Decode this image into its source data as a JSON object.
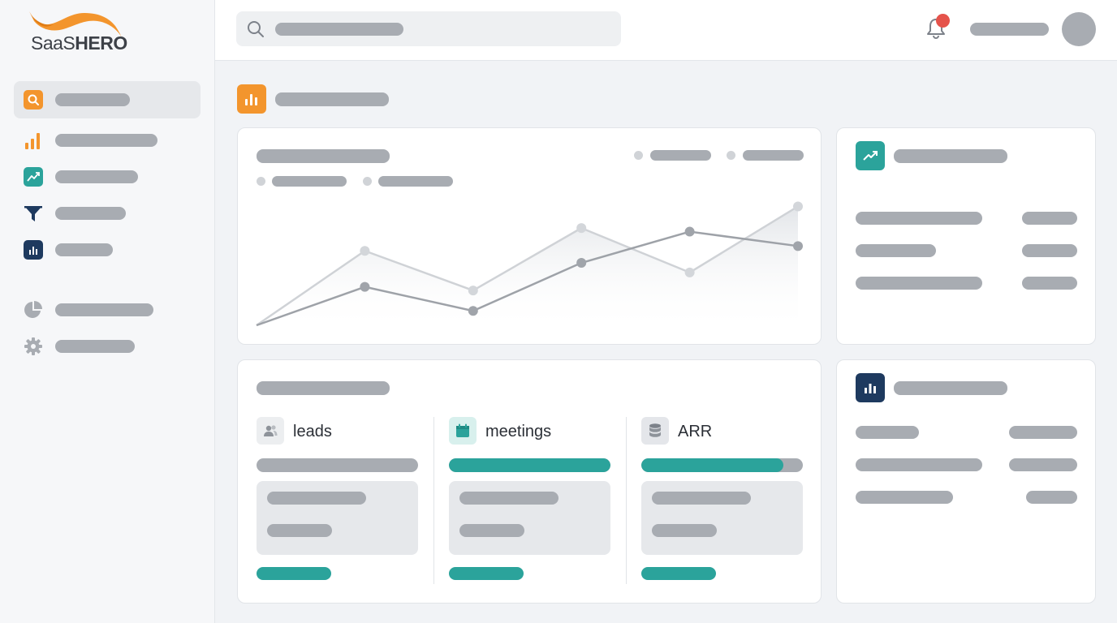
{
  "app": {
    "logo_text_light": "SaaS",
    "logo_text_bold": "HERO",
    "accent_orange": "#f3952d",
    "accent_teal": "#2ba39b",
    "accent_navy": "#1e3a5f",
    "notification_dot": "#e5534b"
  },
  "sidebar": {
    "items": [
      {
        "icon": "search-icon",
        "active": true
      },
      {
        "icon": "bar-chart-icon",
        "active": false
      },
      {
        "icon": "trend-up-icon",
        "active": false
      },
      {
        "icon": "funnel-icon",
        "active": false
      },
      {
        "icon": "column-chart-icon",
        "active": false
      },
      {
        "icon": "pie-chart-icon",
        "active": false
      },
      {
        "icon": "gear-icon",
        "active": false
      }
    ]
  },
  "header": {
    "search_icon": "search-icon",
    "bell_icon": "bell-icon",
    "has_notification": true
  },
  "page": {
    "icon": "bar-chart-icon"
  },
  "chart_data": {
    "type": "line",
    "x": [
      1,
      2,
      3,
      4,
      5,
      6
    ],
    "series": [
      {
        "values": [
          0,
          62,
          29,
          81,
          44,
          99
        ]
      },
      {
        "values": [
          0,
          32,
          12,
          52,
          78,
          66
        ]
      }
    ],
    "ylim": [
      0,
      100
    ],
    "grid": false,
    "legend": "top-right"
  },
  "kpis": [
    {
      "label": "leads",
      "icon": "users-icon",
      "progress": 0
    },
    {
      "label": "meetings",
      "icon": "calendar-icon",
      "progress": 1.0
    },
    {
      "label": "ARR",
      "icon": "database-icon",
      "progress": 0.88
    }
  ],
  "side_cards": [
    {
      "icon": "trend-up-icon"
    },
    {
      "icon": "column-chart-icon"
    }
  ]
}
